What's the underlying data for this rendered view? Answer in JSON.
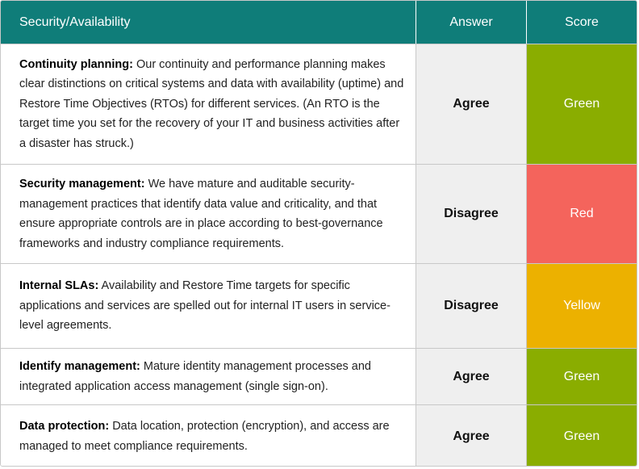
{
  "table": {
    "headers": [
      "Security/Availability",
      "Answer",
      "Score"
    ],
    "rows": [
      {
        "term": "Continuity planning:",
        "description": "Our continuity and performance planning makes clear distinctions on critical systems and data with availability (uptime) and Restore Time Objectives (RTOs) for different services. (An RTO is the target time you set for the recovery of your IT and business activities after a disaster has struck.)",
        "answer": "Agree",
        "score": "Green",
        "color": "#8aad00"
      },
      {
        "term": "Security management:",
        "description": "We have mature and auditable security-management practices that identify data value and criticality, and that ensure appropriate controls are in place according to best-governance frameworks and industry compliance requirements.",
        "answer": "Disagree",
        "score": "Red",
        "color": "#f4645c"
      },
      {
        "term": "Internal SLAs:",
        "description": "Availability and Restore Time targets for specific applications and services are spelled out for internal IT users in service-level agreements.",
        "answer": "Disagree",
        "score": "Yellow",
        "color": "#ecb100"
      },
      {
        "term": "Identify management:",
        "description": "Mature identity management processes and integrated application access management (single sign-on).",
        "answer": "Agree",
        "score": "Green",
        "color": "#8aad00"
      },
      {
        "term": "Data protection:",
        "description": "Data location, protection (encryption), and access are managed to meet compliance requirements.",
        "answer": "Agree",
        "score": "Green",
        "color": "#8aad00"
      }
    ]
  }
}
